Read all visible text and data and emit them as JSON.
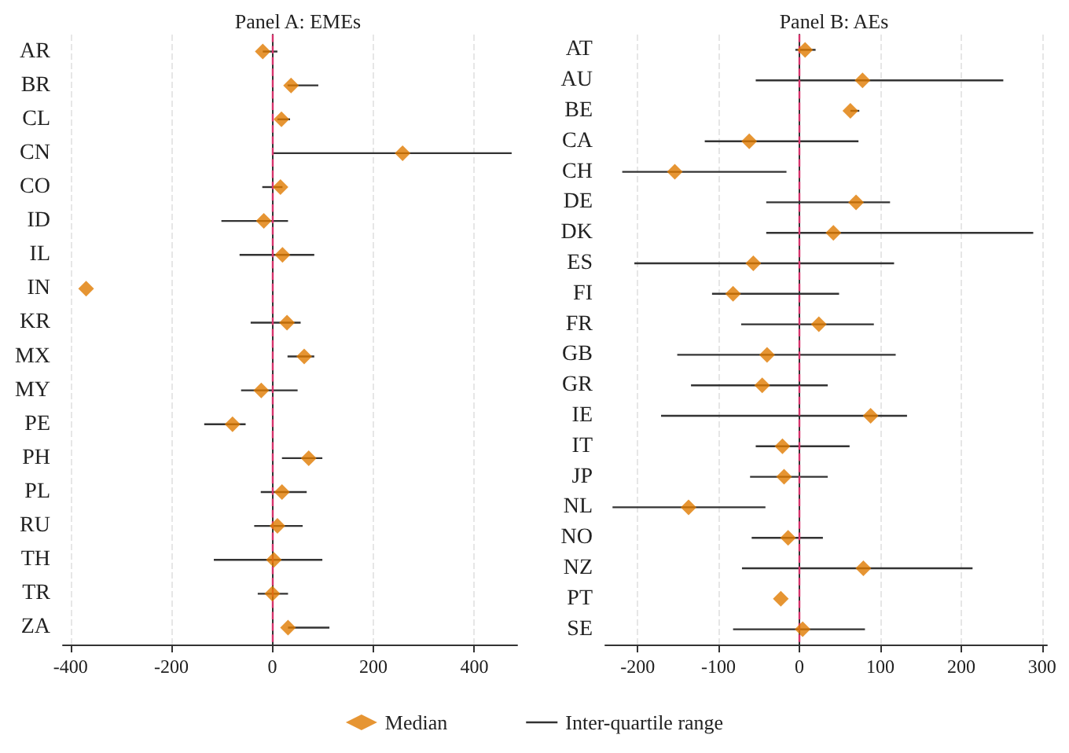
{
  "chart_data": [
    {
      "type": "scatter",
      "title": "Panel A: EMEs",
      "orientation": "horizontal",
      "marker": "diamond",
      "grid": "x",
      "legend": "bottom",
      "annotations": [
        "Inter-quartile range"
      ],
      "categories": [
        "AR",
        "BR",
        "CL",
        "CN",
        "CO",
        "ID",
        "IL",
        "IN",
        "KR",
        "MX",
        "MY",
        "PE",
        "PH",
        "PL",
        "RU",
        "TH",
        "TR",
        "ZA"
      ],
      "xlim": [
        -415,
        485
      ],
      "xticks": [
        -400,
        -200,
        0,
        200,
        400
      ],
      "ref_lines": [
        {
          "axis": "x",
          "value": 0,
          "color": "#d6336c",
          "line_style": "dashed"
        }
      ],
      "series": [
        {
          "name": "Median",
          "color": "#e07b00",
          "values": [
            -19,
            37,
            18,
            258,
            16,
            -17,
            20,
            -369,
            29,
            63,
            -22,
            -79,
            72,
            19,
            10,
            3,
            0,
            31
          ],
          "errors": [
            [
              -19,
              10
            ],
            [
              30,
              91
            ],
            [
              10,
              35
            ],
            [
              0,
              474
            ],
            [
              -20,
              20
            ],
            [
              -101,
              31
            ],
            [
              -65,
              83
            ],
            null,
            [
              -43,
              56
            ],
            [
              30,
              83
            ],
            [
              -62,
              50
            ],
            [
              -135,
              -53
            ],
            [
              19,
              99
            ],
            [
              -23,
              68
            ],
            [
              -36,
              60
            ],
            [
              -116,
              99
            ],
            [
              -29,
              31
            ],
            [
              31,
              113
            ]
          ]
        }
      ]
    },
    {
      "type": "scatter",
      "title": "Panel B: AEs",
      "orientation": "horizontal",
      "marker": "diamond",
      "grid": "x",
      "categories": [
        "AT",
        "AU",
        "BE",
        "CA",
        "CH",
        "DE",
        "DK",
        "ES",
        "FI",
        "FR",
        "GB",
        "GR",
        "IE",
        "IT",
        "JP",
        "NL",
        "NO",
        "NZ",
        "PT",
        "SE"
      ],
      "xlim": [
        -240,
        306
      ],
      "xticks": [
        -200,
        -100,
        0,
        100,
        200,
        300
      ],
      "ref_lines": [
        {
          "axis": "x",
          "value": 0,
          "color": "#d6336c",
          "line_style": "dashed"
        }
      ],
      "series": [
        {
          "color": "#e07b00",
          "values": [
            7,
            78,
            63,
            -62,
            -154,
            70,
            42,
            -57,
            -82,
            24,
            -40,
            -46,
            88,
            -21,
            -19,
            -137,
            -14,
            79,
            -23,
            4
          ],
          "errors": [
            [
              -5,
              20
            ],
            [
              -54,
              252
            ],
            [
              63,
              74
            ],
            [
              -117,
              73
            ],
            [
              -219,
              -16
            ],
            [
              -41,
              112
            ],
            [
              -41,
              289
            ],
            [
              -204,
              117
            ],
            [
              -108,
              49
            ],
            [
              -72,
              92
            ],
            [
              -151,
              119
            ],
            [
              -134,
              35
            ],
            [
              -171,
              133
            ],
            [
              -54,
              62
            ],
            [
              -61,
              35
            ],
            [
              -231,
              -42
            ],
            [
              -59,
              29
            ],
            [
              -71,
              214
            ],
            null,
            [
              -82,
              81
            ]
          ]
        }
      ]
    }
  ]
}
